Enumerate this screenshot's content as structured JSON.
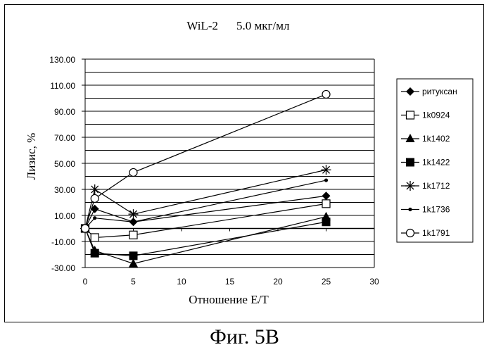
{
  "figure": {
    "caption": "Фиг. 5В"
  },
  "chart_data": {
    "type": "line",
    "title_parts": [
      "WiL-2",
      "5.0 мкг/мл"
    ],
    "xlabel": "Отношение Е/Т",
    "ylabel": "Лизис, %",
    "xlim": [
      0,
      30
    ],
    "ylim": [
      -30,
      130
    ],
    "x_ticks": [
      "0",
      "5",
      "10",
      "15",
      "20",
      "25",
      "30"
    ],
    "y_ticks": [
      "130.00",
      "110.00",
      "90.00",
      "70.00",
      "50.00",
      "30.00",
      "10.00",
      "-10.00",
      "-30.00"
    ],
    "grid": "horizontal",
    "legend_position": "right",
    "x": [
      0,
      1,
      5,
      25
    ],
    "series": [
      {
        "name": "ритуксан",
        "marker": "diamond-filled",
        "values": [
          0,
          15,
          5,
          25
        ]
      },
      {
        "name": "1k0924",
        "marker": "square-open",
        "values": [
          0,
          -7,
          -5,
          19
        ]
      },
      {
        "name": "1k1402",
        "marker": "triangle-filled",
        "values": [
          0,
          -17,
          -27,
          9
        ]
      },
      {
        "name": "1k1422",
        "marker": "square-filled",
        "values": [
          0,
          -19,
          -21,
          5
        ]
      },
      {
        "name": "1k1712",
        "marker": "asterisk",
        "values": [
          0,
          30,
          11,
          45
        ]
      },
      {
        "name": "1k1736",
        "marker": "dot",
        "values": [
          0,
          8,
          5,
          37
        ]
      },
      {
        "name": "1k1791",
        "marker": "circle-open",
        "values": [
          0,
          23,
          43,
          103
        ]
      }
    ]
  }
}
